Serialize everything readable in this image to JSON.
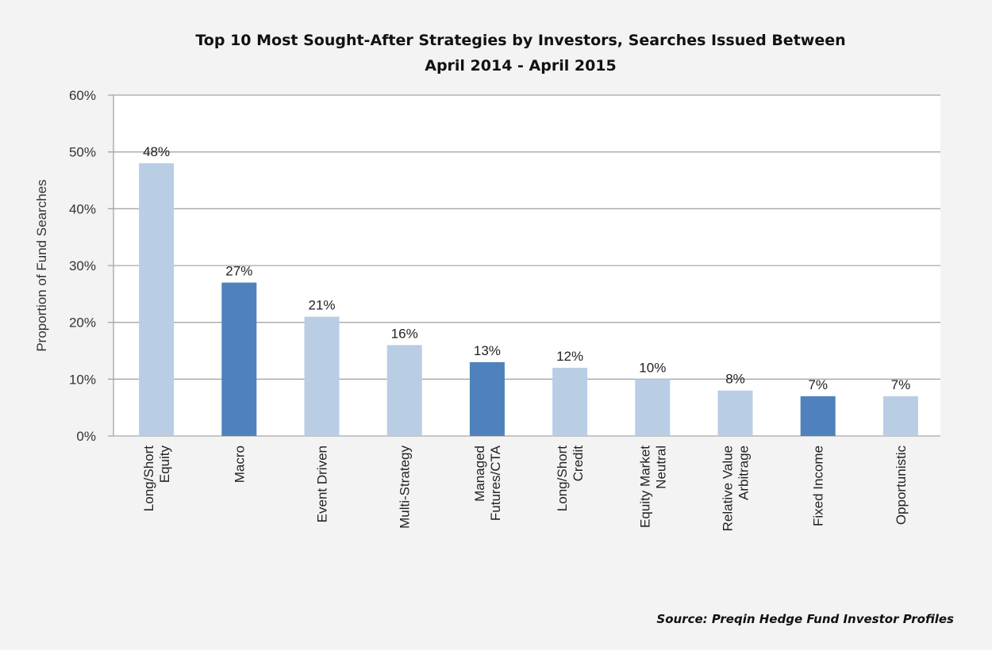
{
  "chart_data": {
    "type": "bar",
    "title": [
      "Top 10 Most Sought-After Strategies by Investors, Searches Issued Between",
      "April 2014 - April 2015"
    ],
    "xlabel": "",
    "ylabel": "Proportion of Fund Searches",
    "ylim": [
      0,
      60
    ],
    "yticks": [
      "0%",
      "10%",
      "20%",
      "30%",
      "40%",
      "50%",
      "60%"
    ],
    "grid": true,
    "categories": [
      [
        "Long/Short",
        "Equity"
      ],
      [
        "Macro"
      ],
      [
        "Event Driven"
      ],
      [
        "Multi-Strategy"
      ],
      [
        "Managed",
        "Futures/CTA"
      ],
      [
        "Long/Short",
        "Credit"
      ],
      [
        "Equity Market",
        "Neutral"
      ],
      [
        "Relative Value",
        "Arbitrage"
      ],
      [
        "Fixed Income"
      ],
      [
        "Opportunistic"
      ]
    ],
    "values": [
      48,
      27,
      21,
      16,
      13,
      12,
      10,
      8,
      7,
      7
    ],
    "data_labels": [
      "48%",
      "27%",
      "21%",
      "16%",
      "13%",
      "12%",
      "10%",
      "8%",
      "7%",
      "7%"
    ],
    "bar_colors": [
      "#b9cde5",
      "#4f81bd",
      "#b9cde5",
      "#b9cde5",
      "#4f81bd",
      "#b9cde5",
      "#b9cde5",
      "#b9cde5",
      "#4f81bd",
      "#b9cde5"
    ],
    "source": "Source:  Preqin Hedge Fund Investor Profiles"
  }
}
